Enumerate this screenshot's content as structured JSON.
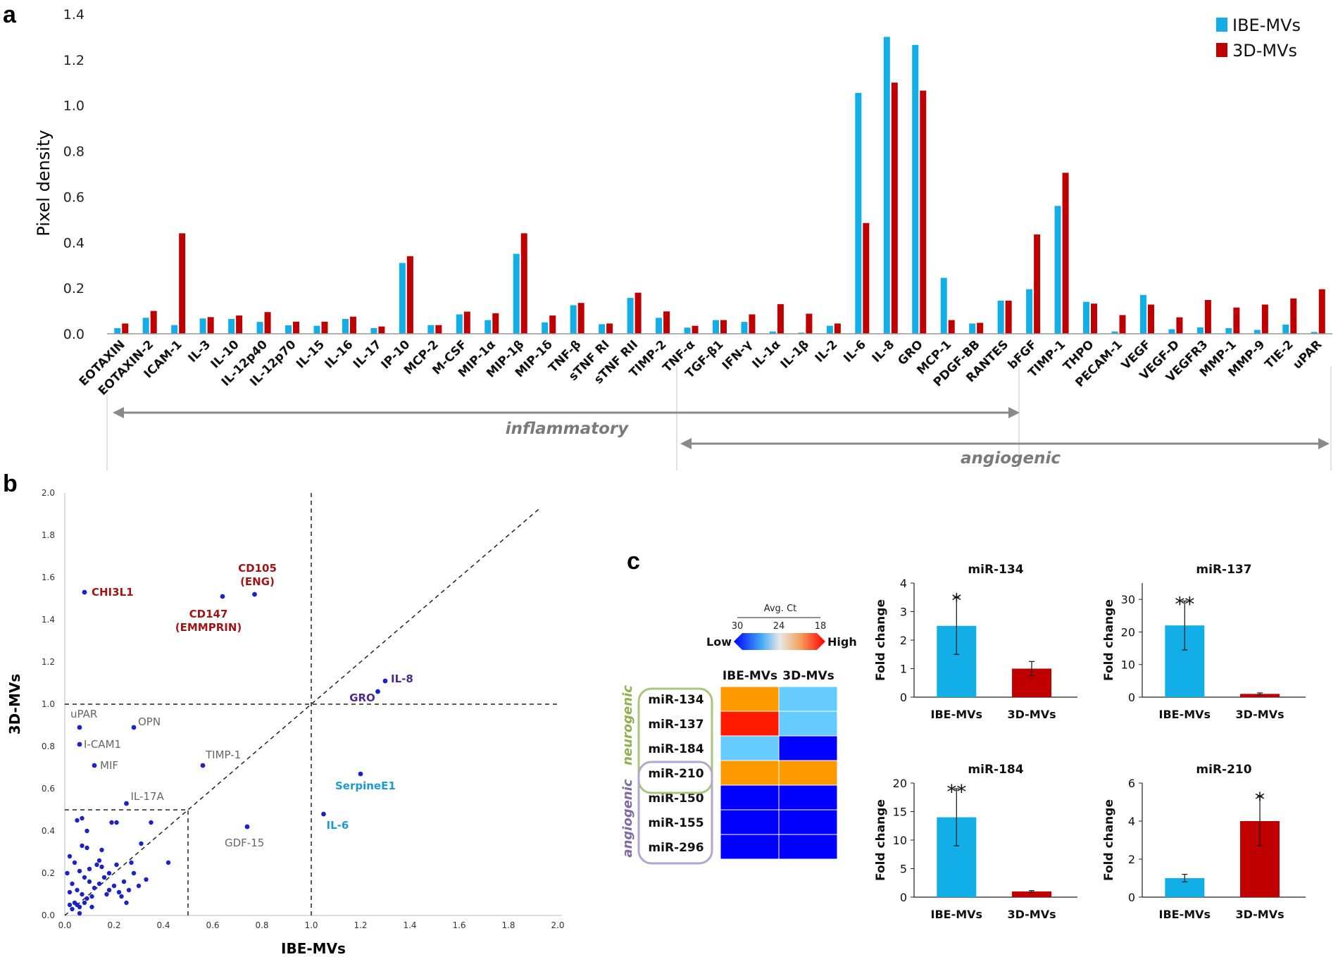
{
  "chart_data": [
    {
      "id": "a",
      "panel_label": "a",
      "type": "bar",
      "ylabel": "Pixel density",
      "xlabel": "",
      "ylim": [
        0,
        1.4
      ],
      "yticks": [
        "0.0",
        "0.2",
        "0.4",
        "0.6",
        "0.8",
        "1.0",
        "1.2",
        "1.4"
      ],
      "legend_position": "top-right",
      "categories": [
        "EOTAXIN",
        "EOTAXIN-2",
        "ICAM-1",
        "IL-3",
        "IL-10",
        "IL-12p40",
        "IL-12p70",
        "IL-15",
        "IL-16",
        "IL-17",
        "IP-10",
        "MCP-2",
        "M-CSF",
        "MIP-1α",
        "MIP-1β",
        "MIP-1δ",
        "TNF-β",
        "sTNF RI",
        "sTNF RII",
        "TIMP-2",
        "TNF-α",
        "TGF-β1",
        "IFN-γ",
        "IL-1α",
        "IL-1β",
        "IL-2",
        "IL-6",
        "IL-8",
        "GRO",
        "MCP-1",
        "PDGF-BB",
        "RANTES",
        "bFGF",
        "TIMP-1",
        "THPO",
        "PECAM-1",
        "VEGF",
        "VEGF-D",
        "VEGFR3",
        "MMP-1",
        "MMP-9",
        "TIE-2",
        "uPAR"
      ],
      "series": [
        {
          "name": "IBE-MVs",
          "color": "#12aee8",
          "values": [
            0.025,
            0.07,
            0.038,
            0.067,
            0.065,
            0.052,
            0.037,
            0.035,
            0.065,
            0.025,
            0.31,
            0.038,
            0.085,
            0.06,
            0.35,
            0.05,
            0.125,
            0.042,
            0.157,
            0.07,
            0.027,
            0.06,
            0.052,
            0.01,
            0.005,
            0.035,
            1.055,
            1.3,
            1.265,
            0.245,
            0.045,
            0.145,
            0.195,
            0.56,
            0.14,
            0.01,
            0.17,
            0.02,
            0.028,
            0.025,
            0.017,
            0.04,
            0.008
          ]
        },
        {
          "name": "3D-MVs",
          "color": "#c00000",
          "values": [
            0.045,
            0.1,
            0.44,
            0.073,
            0.08,
            0.095,
            0.053,
            0.053,
            0.075,
            0.032,
            0.34,
            0.038,
            0.097,
            0.09,
            0.44,
            0.08,
            0.135,
            0.045,
            0.18,
            0.098,
            0.035,
            0.06,
            0.085,
            0.13,
            0.088,
            0.045,
            0.485,
            1.1,
            1.065,
            0.06,
            0.048,
            0.145,
            0.435,
            0.705,
            0.132,
            0.082,
            0.128,
            0.072,
            0.148,
            0.115,
            0.128,
            0.155,
            0.195
          ]
        }
      ],
      "groups": [
        {
          "label": "inflammatory",
          "from": "EOTAXIN",
          "to": "RANTES"
        },
        {
          "label": "angiogenic",
          "from": "TNF-α",
          "to": "uPAR"
        }
      ]
    },
    {
      "id": "b",
      "panel_label": "b",
      "type": "scatter",
      "xlabel": "IBE-MVs",
      "ylabel": "3D-MVs",
      "xlim": [
        0,
        2.0
      ],
      "ylim": [
        0,
        2.0
      ],
      "xticks": [
        "0.0",
        "0.2",
        "0.4",
        "0.6",
        "0.8",
        "1.0",
        "1.2",
        "1.4",
        "1.6",
        "1.8",
        "2.0"
      ],
      "yticks": [
        "0.0",
        "0.2",
        "0.4",
        "0.6",
        "0.8",
        "1.0",
        "1.2",
        "1.4",
        "1.6",
        "1.8",
        "2.0"
      ],
      "reference_lines": {
        "diagonal": "y = x",
        "horizontal": [
          1.0,
          0.5
        ],
        "vertical": [
          1.0,
          0.5
        ]
      },
      "point_color": "#1a22c8",
      "labeled_points": [
        {
          "label": "CHI3L1",
          "x": 0.08,
          "y": 1.53,
          "color": "#a31515"
        },
        {
          "label": "CD105",
          "x": 0.77,
          "y": 1.52,
          "color": "#a31515"
        },
        {
          "label": "(ENG)",
          "x": 0.77,
          "y": 1.52,
          "color": "#a31515"
        },
        {
          "label": "CD147",
          "x": 0.64,
          "y": 1.51,
          "color": "#a31515"
        },
        {
          "label": "(EMMPRIN)",
          "x": 0.64,
          "y": 1.51,
          "color": "#a31515"
        },
        {
          "label": "IL-8",
          "x": 1.3,
          "y": 1.11,
          "color": "#4b2b8f"
        },
        {
          "label": "GRO",
          "x": 1.27,
          "y": 1.06,
          "color": "#4b2b8f"
        },
        {
          "label": "uPAR",
          "x": 0.06,
          "y": 0.89,
          "color": "#666666"
        },
        {
          "label": "OPN",
          "x": 0.28,
          "y": 0.89,
          "color": "#666666"
        },
        {
          "label": "I-CAM1",
          "x": 0.06,
          "y": 0.81,
          "color": "#666666"
        },
        {
          "label": "MIF",
          "x": 0.12,
          "y": 0.71,
          "color": "#666666"
        },
        {
          "label": "TIMP-1",
          "x": 0.56,
          "y": 0.71,
          "color": "#666666"
        },
        {
          "label": "IL-17A",
          "x": 0.25,
          "y": 0.53,
          "color": "#666666"
        },
        {
          "label": "GDF-15",
          "x": 0.74,
          "y": 0.42,
          "color": "#666666"
        },
        {
          "label": "SerpineE1",
          "x": 1.2,
          "y": 0.67,
          "color": "#1b9ad6"
        },
        {
          "label": "IL-6",
          "x": 1.05,
          "y": 0.48,
          "color": "#1b9ad6"
        }
      ],
      "cluster_points": [
        [
          0.02,
          0.28
        ],
        [
          0.04,
          0.25
        ],
        [
          0.06,
          0.21
        ],
        [
          0.03,
          0.15
        ],
        [
          0.05,
          0.12
        ],
        [
          0.08,
          0.18
        ],
        [
          0.1,
          0.16
        ],
        [
          0.07,
          0.1
        ],
        [
          0.09,
          0.08
        ],
        [
          0.04,
          0.06
        ],
        [
          0.06,
          0.04
        ],
        [
          0.03,
          0.03
        ],
        [
          0.05,
          0.05
        ],
        [
          0.08,
          0.06
        ],
        [
          0.11,
          0.09
        ],
        [
          0.12,
          0.13
        ],
        [
          0.14,
          0.15
        ],
        [
          0.16,
          0.18
        ],
        [
          0.18,
          0.2
        ],
        [
          0.2,
          0.14
        ],
        [
          0.22,
          0.11
        ],
        [
          0.24,
          0.16
        ],
        [
          0.26,
          0.12
        ],
        [
          0.21,
          0.24
        ],
        [
          0.23,
          0.09
        ],
        [
          0.25,
          0.06
        ],
        [
          0.19,
          0.44
        ],
        [
          0.21,
          0.44
        ],
        [
          0.35,
          0.44
        ],
        [
          0.31,
          0.34
        ],
        [
          0.42,
          0.25
        ],
        [
          0.07,
          0.33
        ],
        [
          0.09,
          0.32
        ],
        [
          0.05,
          0.45
        ],
        [
          0.07,
          0.46
        ],
        [
          0.01,
          0.2
        ],
        [
          0.02,
          0.11
        ],
        [
          0.13,
          0.24
        ],
        [
          0.15,
          0.23
        ],
        [
          0.17,
          0.1
        ],
        [
          0.33,
          0.17
        ],
        [
          0.28,
          0.2
        ],
        [
          0.11,
          0.04
        ],
        [
          0.14,
          0.26
        ],
        [
          0.3,
          0.14
        ],
        [
          0.27,
          0.25
        ],
        [
          0.15,
          0.31
        ],
        [
          0.09,
          0.4
        ],
        [
          0.02,
          0.05
        ],
        [
          0.1,
          0.22
        ],
        [
          0.18,
          0.12
        ],
        [
          0.06,
          0.01
        ]
      ]
    },
    {
      "id": "c-miR-134",
      "panel_label": "c",
      "type": "bar",
      "title": "miR-134",
      "ylabel": "Fold change",
      "ylim": [
        0,
        4
      ],
      "yticks": [
        "0",
        "1",
        "2",
        "3",
        "4"
      ],
      "categories": [
        "IBE-MVs",
        "3D-MVs"
      ],
      "values": [
        2.5,
        1.0
      ],
      "errors": [
        1.0,
        0.25
      ],
      "colors": [
        "#12aee8",
        "#c00000"
      ],
      "significance": [
        "*",
        ""
      ]
    },
    {
      "id": "c-miR-137",
      "panel_label": "",
      "type": "bar",
      "title": "miR-137",
      "ylabel": "Fold change",
      "ylim": [
        0,
        35
      ],
      "yticks": [
        "0",
        "10",
        "20",
        "30"
      ],
      "categories": [
        "IBE-MVs",
        "3D-MVs"
      ],
      "values": [
        22,
        1.0
      ],
      "errors": [
        7.5,
        0.3
      ],
      "colors": [
        "#12aee8",
        "#c00000"
      ],
      "significance": [
        "**",
        ""
      ]
    },
    {
      "id": "c-miR-184",
      "panel_label": "",
      "type": "bar",
      "title": "miR-184",
      "ylabel": "Fold change",
      "ylim": [
        0,
        20
      ],
      "yticks": [
        "0",
        "5",
        "10",
        "15",
        "20"
      ],
      "categories": [
        "IBE-MVs",
        "3D-MVs"
      ],
      "values": [
        14,
        1.0
      ],
      "errors": [
        5.0,
        0.15
      ],
      "colors": [
        "#12aee8",
        "#c00000"
      ],
      "significance": [
        "**",
        ""
      ]
    },
    {
      "id": "c-miR-210",
      "panel_label": "",
      "type": "bar",
      "title": "miR-210",
      "ylabel": "Fold change",
      "ylim": [
        0,
        6
      ],
      "yticks": [
        "0",
        "2",
        "4",
        "6"
      ],
      "categories": [
        "IBE-MVs",
        "3D-MVs"
      ],
      "values": [
        1.0,
        4.0
      ],
      "errors": [
        0.2,
        1.3
      ],
      "colors": [
        "#12aee8",
        "#c00000"
      ],
      "significance": [
        "",
        "*"
      ]
    },
    {
      "id": "c-heatmap",
      "panel_label": "",
      "type": "heatmap",
      "scale_title": "Avg. Ct",
      "scale_ticks": [
        "30",
        "24",
        "18"
      ],
      "scale_low": "Low",
      "scale_high": "High",
      "columns": [
        "IBE-MVs",
        "3D-MVs"
      ],
      "rows": [
        "miR-134",
        "miR-137",
        "miR-184",
        "miR-210",
        "miR-150",
        "miR-155",
        "miR-296"
      ],
      "colors": [
        [
          "#ff9900",
          "#66ccff"
        ],
        [
          "#ff1a00",
          "#66ccff"
        ],
        [
          "#66ccff",
          "#0000ff"
        ],
        [
          "#ff9900",
          "#ff9900"
        ],
        [
          "#0000ff",
          "#0000ff"
        ],
        [
          "#0000ff",
          "#0000ff"
        ],
        [
          "#0000ff",
          "#0000ff"
        ]
      ],
      "groups": [
        {
          "label": "neurogenic",
          "color": "#8db24a",
          "rows": [
            "miR-134",
            "miR-137",
            "miR-184",
            "miR-210"
          ]
        },
        {
          "label": "angiogenic",
          "color": "#7d6aa8",
          "rows": [
            "miR-210",
            "miR-150",
            "miR-155",
            "miR-296"
          ]
        }
      ]
    }
  ]
}
